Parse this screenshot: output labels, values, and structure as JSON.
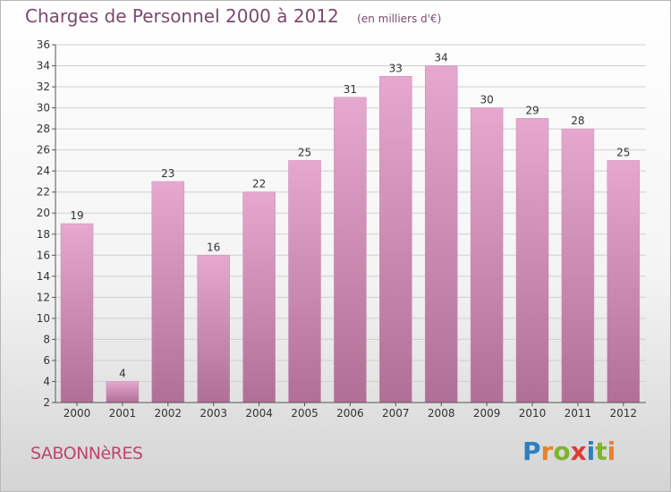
{
  "header": {
    "title": "Charges de Personnel 2000 à 2012",
    "unit": "(en milliers d'€)"
  },
  "footer": {
    "commune": "SABONNèRES",
    "logo_letters": [
      "P",
      "r",
      "o",
      "x",
      "i",
      "t",
      "i"
    ],
    "logo_colors": [
      "#2e7fc2",
      "#e8832a",
      "#7fb32e",
      "#e13a37",
      "#2e7fc2",
      "#7fb32e",
      "#e8832a"
    ]
  },
  "colors": {
    "bar_top": "#e6a8cf",
    "bar_bottom": "#b06f96",
    "grid": "#cfcfcf",
    "axis": "#555555"
  },
  "chart_data": {
    "type": "bar",
    "categories": [
      "2000",
      "2001",
      "2002",
      "2003",
      "2004",
      "2005",
      "2006",
      "2007",
      "2008",
      "2009",
      "2010",
      "2011",
      "2012"
    ],
    "values": [
      19,
      4,
      23,
      16,
      22,
      25,
      31,
      33,
      34,
      30,
      29,
      28,
      25
    ],
    "title": "Charges de Personnel 2000 à 2012",
    "ylim": [
      2,
      36
    ],
    "yticks": [
      2,
      4,
      6,
      8,
      10,
      12,
      14,
      16,
      18,
      20,
      22,
      24,
      26,
      28,
      30,
      32,
      34,
      36
    ],
    "grid": true
  }
}
